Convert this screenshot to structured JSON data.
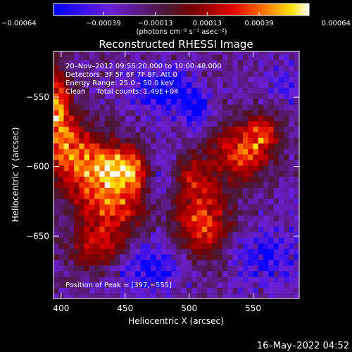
{
  "chart_data": {
    "type": "heatmap",
    "title": "Reconstructed RHESSI Image",
    "xlabel": "Heliocentric X (arcsec)",
    "ylabel": "Heliocentric Y (arcsec)",
    "xlim": [
      394,
      586
    ],
    "ylim": [
      -695,
      -517
    ],
    "x_ticks": [
      400,
      450,
      500,
      550
    ],
    "y_ticks": [
      -550,
      -600,
      -650
    ],
    "x_tick_labels": [
      "400",
      "450",
      "500",
      "550"
    ],
    "y_tick_labels": [
      "−550",
      "−600",
      "−650"
    ],
    "colorbar": {
      "range": [
        -0.00064,
        0.00064
      ],
      "tick_values": [
        -0.00064,
        -0.00039,
        -0.00013,
        0.00013,
        0.00039,
        0.00064
      ],
      "tick_labels": [
        "−0.00064",
        "−0.00039",
        "−0.00013",
        "0.00013",
        "0.00039",
        "0.00064"
      ],
      "unit_label": "(photons cm⁻² s⁻¹ asec⁻²)",
      "colors": [
        "#0000ff",
        "#6a1fd8",
        "#5a1a2a",
        "#c80000",
        "#ff7000",
        "#ffffff"
      ]
    },
    "annotations": {
      "lines": [
        "20–Nov–2012 09:55:20.000 to 10:00:48.000",
        "Detectors: 3F 5F 6F 7F 8F, Att 0",
        "Energy Range: 25.0 – 50.0 keV",
        "Clean     Total counts: 1.49E+04"
      ],
      "peak": "Position of Peak = [397,−555]"
    },
    "sources": [
      {
        "x": 397,
        "y": -560,
        "amp": 0.00064,
        "sx": 8,
        "sy": 22
      },
      {
        "x": 440,
        "y": -620,
        "amp": 0.00062,
        "sx": 22,
        "sy": 22
      },
      {
        "x": 412,
        "y": -590,
        "amp": 0.00048,
        "sx": 14,
        "sy": 16
      },
      {
        "x": 448,
        "y": -600,
        "amp": 0.00045,
        "sx": 14,
        "sy": 10
      },
      {
        "x": 430,
        "y": -660,
        "amp": 0.0004,
        "sx": 16,
        "sy": 10
      },
      {
        "x": 510,
        "y": -640,
        "amp": 0.00058,
        "sx": 16,
        "sy": 20
      },
      {
        "x": 540,
        "y": -590,
        "amp": 0.00056,
        "sx": 16,
        "sy": 14
      },
      {
        "x": 558,
        "y": -575,
        "amp": 0.0004,
        "sx": 10,
        "sy": 10
      },
      {
        "x": 500,
        "y": -605,
        "amp": 0.00032,
        "sx": 10,
        "sy": 10
      },
      {
        "x": 480,
        "y": -545,
        "amp": -0.00052,
        "sx": 16,
        "sy": 10
      },
      {
        "x": 505,
        "y": -558,
        "amp": -0.00042,
        "sx": 8,
        "sy": 8
      },
      {
        "x": 478,
        "y": -610,
        "amp": -0.0003,
        "sx": 9,
        "sy": 18
      },
      {
        "x": 470,
        "y": -670,
        "amp": -0.0004,
        "sx": 20,
        "sy": 14
      },
      {
        "x": 560,
        "y": -665,
        "amp": -0.0003,
        "sx": 22,
        "sy": 14
      },
      {
        "x": 575,
        "y": -540,
        "amp": -0.00025,
        "sx": 10,
        "sy": 10
      }
    ]
  },
  "footer": {
    "timestamp": "16–May–2022 04:52"
  }
}
